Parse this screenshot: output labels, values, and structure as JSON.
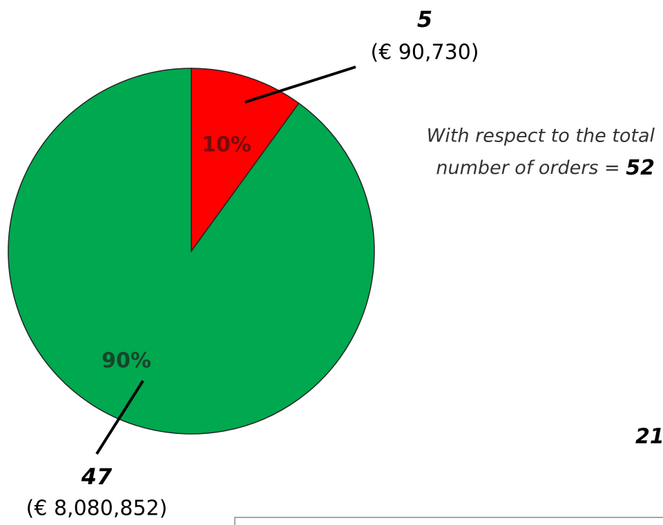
{
  "chart_data": {
    "type": "pie",
    "values": [
      10,
      90
    ],
    "value_labels": [
      "10%",
      "90%"
    ],
    "colors": [
      "#ff0000",
      "#00a84f"
    ],
    "label_colors": [
      "#7a0a0a",
      "#17452a"
    ],
    "counts": [
      5,
      47
    ],
    "amount_labels": [
      "(€ 90,730)",
      "(€ 8,080,852)"
    ],
    "annotation": {
      "lines": [
        "With respect to the total",
        "number of orders ="
      ],
      "total": 52
    },
    "partial_label": "21"
  }
}
